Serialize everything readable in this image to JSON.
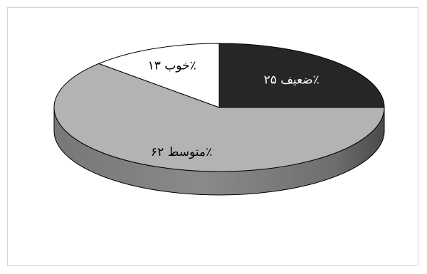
{
  "chart_data": {
    "type": "pie",
    "title": "",
    "three_d": true,
    "legend": "none",
    "slices": [
      {
        "label": "ضعیف",
        "value": 25,
        "display": "ضعیف ۲۵٪",
        "color": "#262626",
        "text_color": "#ffffff"
      },
      {
        "label": "متوسط",
        "value": 62,
        "display": "متوسط ۶۲٪",
        "color": "#b3b3b3",
        "text_color": "#000000"
      },
      {
        "label": "خوب",
        "value": 13,
        "display": "خوب ۱۳٪",
        "color": "#ffffff",
        "text_color": "#000000"
      }
    ]
  }
}
